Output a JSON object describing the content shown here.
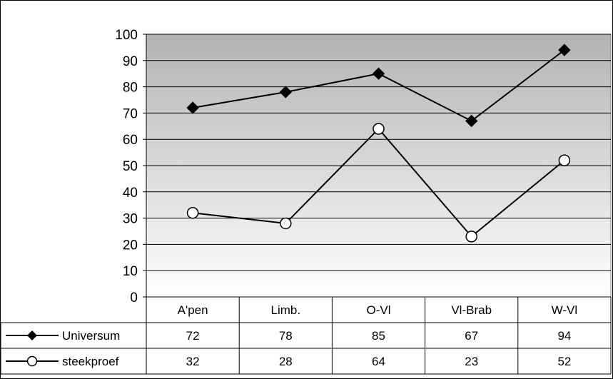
{
  "chart_data": {
    "type": "line",
    "categories": [
      "A'pen",
      "Limb.",
      "O-Vl",
      "Vl-Brab",
      "W-Vl"
    ],
    "series": [
      {
        "name": "Universum",
        "values": [
          72,
          78,
          85,
          67,
          94
        ],
        "marker": "diamond-filled",
        "color": "#000000"
      },
      {
        "name": "steekproef",
        "values": [
          32,
          28,
          64,
          23,
          52
        ],
        "marker": "circle-open",
        "color": "#000000"
      }
    ],
    "ylim": [
      0,
      100
    ],
    "yticks": [
      0,
      10,
      20,
      30,
      40,
      50,
      60,
      70,
      80,
      90,
      100
    ],
    "grid": true,
    "legend": "data-table-below",
    "plot_background": {
      "top": "#b3b3b3",
      "bottom": "#ffffff"
    }
  }
}
